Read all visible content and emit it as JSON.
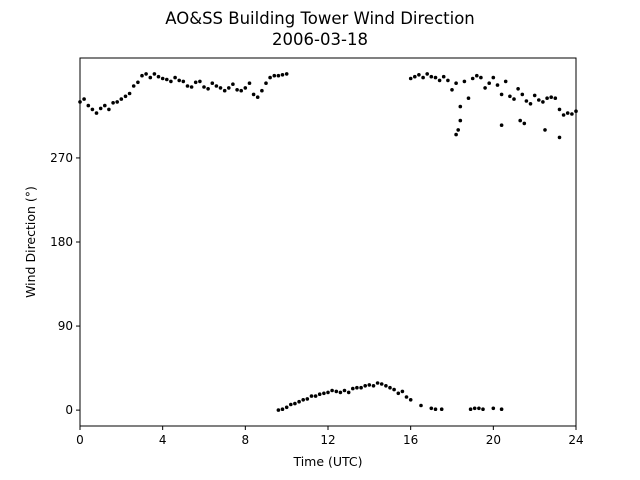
{
  "chart_data": {
    "type": "scatter",
    "title": "AO&SS Building Tower Wind Direction",
    "subtitle": "2006-03-18",
    "xlabel": "Time (UTC)",
    "ylabel": "Wind Direction (°)",
    "xlim": [
      0,
      24
    ],
    "ylim": [
      -17,
      377
    ],
    "xticks": [
      0,
      4,
      8,
      12,
      16,
      20,
      24
    ],
    "yticks": [
      0,
      90,
      180,
      270
    ],
    "grid": false,
    "legend": "none",
    "marker_color": "#000000",
    "series": [
      {
        "x": [
          0.0,
          0.2,
          0.4,
          0.6,
          0.8,
          1.0,
          1.2,
          1.4,
          1.6,
          1.8,
          2.0,
          2.2,
          2.4,
          2.6,
          2.8,
          3.0,
          3.2,
          3.4,
          3.6,
          3.8,
          4.0,
          4.2,
          4.4,
          4.6,
          4.8,
          5.0,
          5.2,
          5.4,
          5.6,
          5.8,
          6.0,
          6.2,
          6.4,
          6.6,
          6.8,
          7.0,
          7.2,
          7.4,
          7.6,
          7.8,
          8.0,
          8.2,
          8.4,
          8.6,
          8.8,
          9.0,
          9.2,
          9.4,
          9.6,
          9.8,
          10.0,
          9.6,
          9.8,
          10.0,
          10.2,
          10.4,
          10.6,
          10.8,
          11.0,
          11.2,
          11.4,
          11.6,
          11.8,
          12.0,
          12.2,
          12.4,
          12.6,
          12.8,
          13.0,
          13.2,
          13.4,
          13.6,
          13.8,
          14.0,
          14.2,
          14.4,
          14.6,
          14.8,
          15.0,
          15.2,
          15.4,
          15.6,
          15.8,
          16.0,
          16.5,
          17.0,
          17.2,
          17.5,
          18.9,
          19.1,
          19.3,
          19.5,
          20.0,
          20.4,
          16.0,
          16.2,
          16.4,
          16.6,
          16.8,
          17.0,
          17.2,
          17.4,
          17.6,
          17.8,
          18.0,
          18.2,
          18.4,
          18.6,
          18.8,
          19.0,
          19.2,
          19.4,
          19.6,
          19.8,
          20.0,
          20.2,
          20.4,
          20.6,
          20.8,
          21.0,
          21.2,
          21.4,
          21.6,
          21.8,
          22.0,
          22.2,
          22.4,
          22.6,
          22.8,
          23.0,
          23.2,
          23.4,
          23.6,
          23.8,
          24.0,
          18.2,
          18.3,
          18.4,
          20.4,
          21.3,
          21.5,
          22.5,
          23.2
        ],
        "y": [
          330,
          333,
          326,
          322,
          318,
          323,
          326,
          322,
          329,
          330,
          333,
          336,
          339,
          347,
          351,
          358,
          360,
          356,
          360,
          357,
          355,
          354,
          352,
          356,
          353,
          352,
          347,
          346,
          351,
          352,
          346,
          344,
          350,
          347,
          345,
          342,
          345,
          349,
          343,
          342,
          345,
          350,
          338,
          335,
          342,
          350,
          356,
          358,
          358,
          359,
          360,
          0,
          1,
          3,
          6,
          7,
          9,
          11,
          12,
          15,
          15,
          17,
          18,
          19,
          21,
          20,
          19,
          21,
          19,
          23,
          24,
          24,
          26,
          27,
          26,
          29,
          28,
          26,
          24,
          22,
          18,
          20,
          14,
          11,
          5,
          2,
          1,
          1,
          1,
          2,
          2,
          1,
          2,
          1,
          355,
          357,
          359,
          356,
          360,
          357,
          356,
          353,
          357,
          353,
          343,
          350,
          325,
          352,
          334,
          355,
          358,
          356,
          345,
          350,
          356,
          348,
          338,
          352,
          336,
          333,
          344,
          338,
          331,
          328,
          337,
          332,
          330,
          334,
          335,
          334,
          322,
          316,
          318,
          317,
          320,
          295,
          300,
          310,
          305,
          310,
          307,
          300,
          292
        ]
      }
    ]
  }
}
